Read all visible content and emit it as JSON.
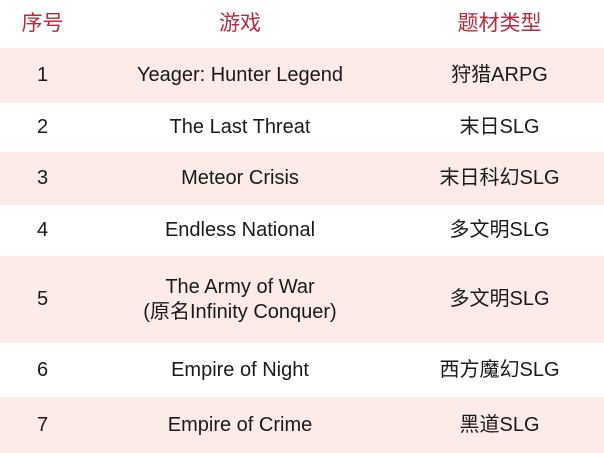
{
  "colors": {
    "header_text": "#b62b3d",
    "row_alt_bg": "#fcebe6",
    "body_text": "#1a1a1a"
  },
  "table": {
    "headers": {
      "index": "序号",
      "game": "游戏",
      "genre": "题材类型"
    },
    "rows": [
      {
        "no": "1",
        "game_lines": [
          "Yeager: Hunter Legend"
        ],
        "type": "狩猎ARPG"
      },
      {
        "no": "2",
        "game_lines": [
          "The Last Threat"
        ],
        "type": "末日SLG"
      },
      {
        "no": "3",
        "game_lines": [
          "Meteor Crisis"
        ],
        "type": "末日科幻SLG"
      },
      {
        "no": "4",
        "game_lines": [
          "Endless National"
        ],
        "type": "多文明SLG"
      },
      {
        "no": "5",
        "game_lines": [
          "The Army of War",
          "(原名Infinity Conquer)"
        ],
        "type": "多文明SLG"
      },
      {
        "no": "6",
        "game_lines": [
          "Empire of Night"
        ],
        "type": "西方魔幻SLG"
      },
      {
        "no": "7",
        "game_lines": [
          "Empire of Crime"
        ],
        "type": "黑道SLG"
      }
    ]
  }
}
